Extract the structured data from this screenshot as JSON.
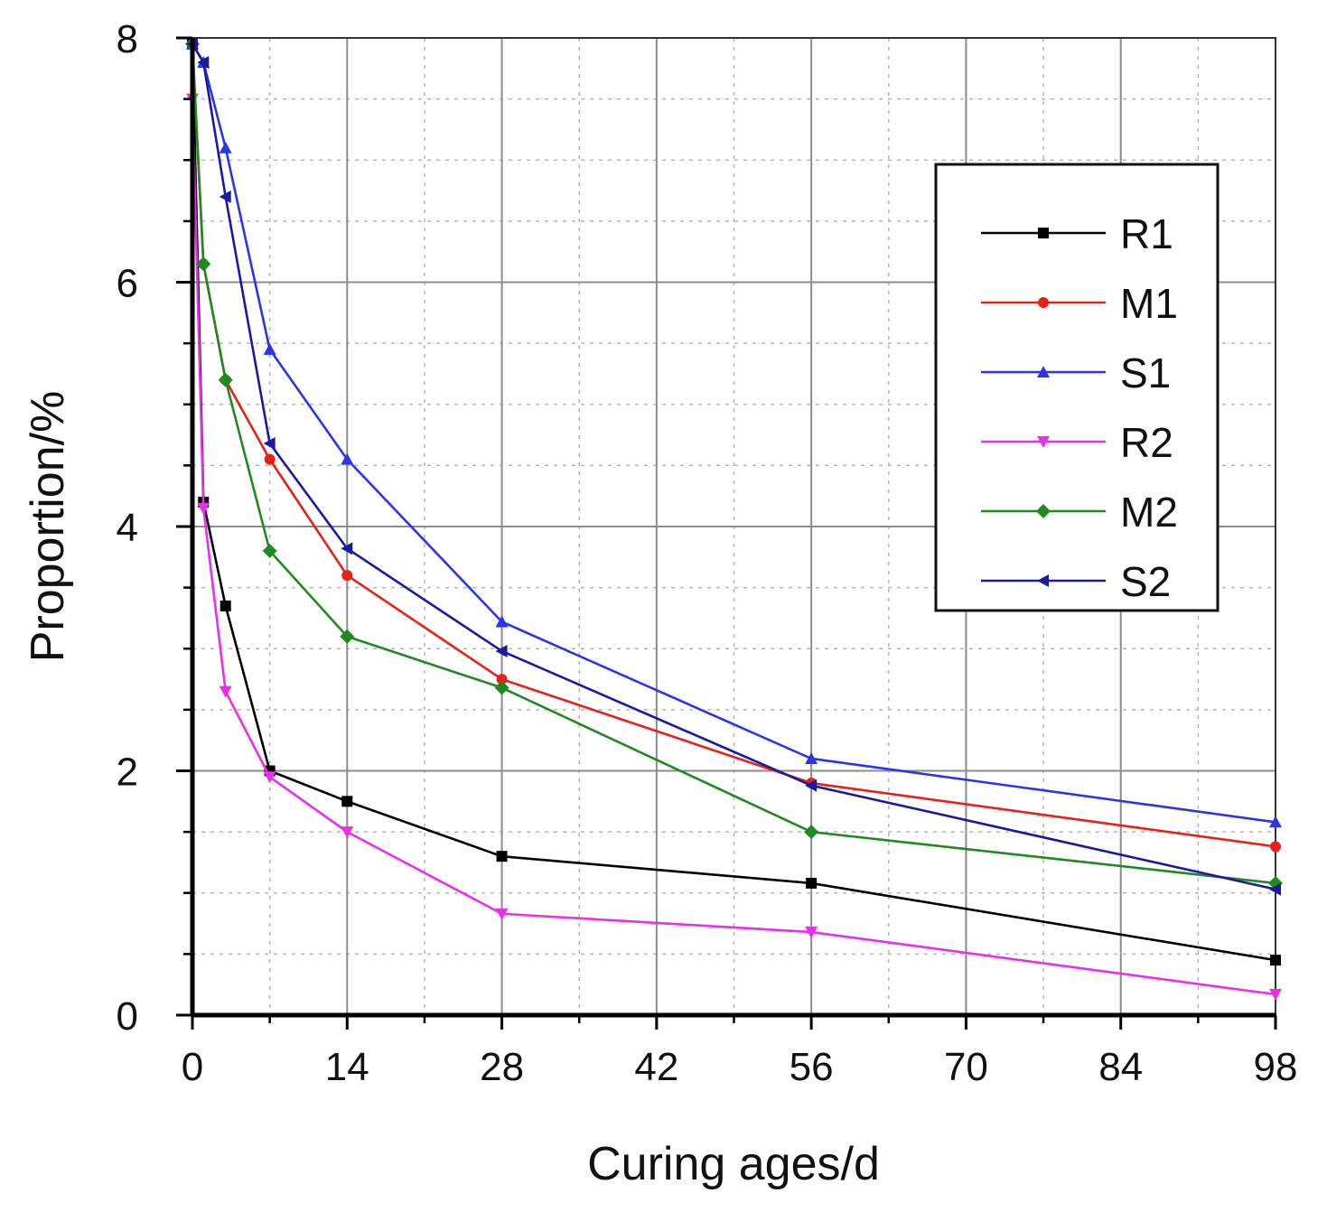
{
  "chart_data": {
    "type": "line",
    "title": "",
    "xlabel": "Curing ages/d",
    "ylabel": "Proportion/%",
    "xlim": [
      0,
      98
    ],
    "ylim": [
      0,
      8
    ],
    "xticks": [
      0,
      14,
      28,
      42,
      56,
      70,
      84,
      98
    ],
    "yticks": [
      0,
      2,
      4,
      6,
      8
    ],
    "x_minor_step": 7,
    "y_minor_step": 0.5,
    "grid": true,
    "legend_position": "top-right",
    "series": [
      {
        "name": "R1",
        "color": "#000000",
        "marker": "square",
        "x": [
          0,
          1,
          3,
          7,
          14,
          28,
          56,
          98
        ],
        "y": [
          7.95,
          4.2,
          3.35,
          2.0,
          1.75,
          1.3,
          1.08,
          0.45
        ]
      },
      {
        "name": "M1",
        "color": "#e8201a",
        "marker": "circle",
        "x": [
          0,
          1,
          3,
          7,
          14,
          28,
          56,
          98
        ],
        "y": [
          7.95,
          6.15,
          5.2,
          4.55,
          3.6,
          2.75,
          1.9,
          1.38
        ]
      },
      {
        "name": "S1",
        "color": "#2a35e8",
        "marker": "triangle-up",
        "x": [
          0,
          1,
          3,
          7,
          14,
          28,
          56,
          98
        ],
        "y": [
          7.95,
          7.8,
          7.1,
          5.45,
          4.55,
          3.22,
          2.1,
          1.58
        ]
      },
      {
        "name": "R2",
        "color": "#e830e8",
        "marker": "triangle-down",
        "x": [
          0,
          1,
          3,
          7,
          14,
          28,
          56,
          98
        ],
        "y": [
          7.5,
          4.15,
          2.65,
          1.95,
          1.5,
          0.83,
          0.68,
          0.17
        ]
      },
      {
        "name": "M2",
        "color": "#1f8a1f",
        "marker": "diamond",
        "x": [
          0,
          1,
          3,
          7,
          14,
          28,
          56,
          98
        ],
        "y": [
          7.95,
          6.15,
          5.2,
          3.8,
          3.1,
          2.68,
          1.5,
          1.08
        ]
      },
      {
        "name": "S2",
        "color": "#1a1aa0",
        "marker": "triangle-left",
        "x": [
          0,
          1,
          3,
          7,
          14,
          28,
          56,
          98
        ],
        "y": [
          7.95,
          7.8,
          6.7,
          4.68,
          3.82,
          2.98,
          1.88,
          1.03
        ]
      }
    ]
  }
}
